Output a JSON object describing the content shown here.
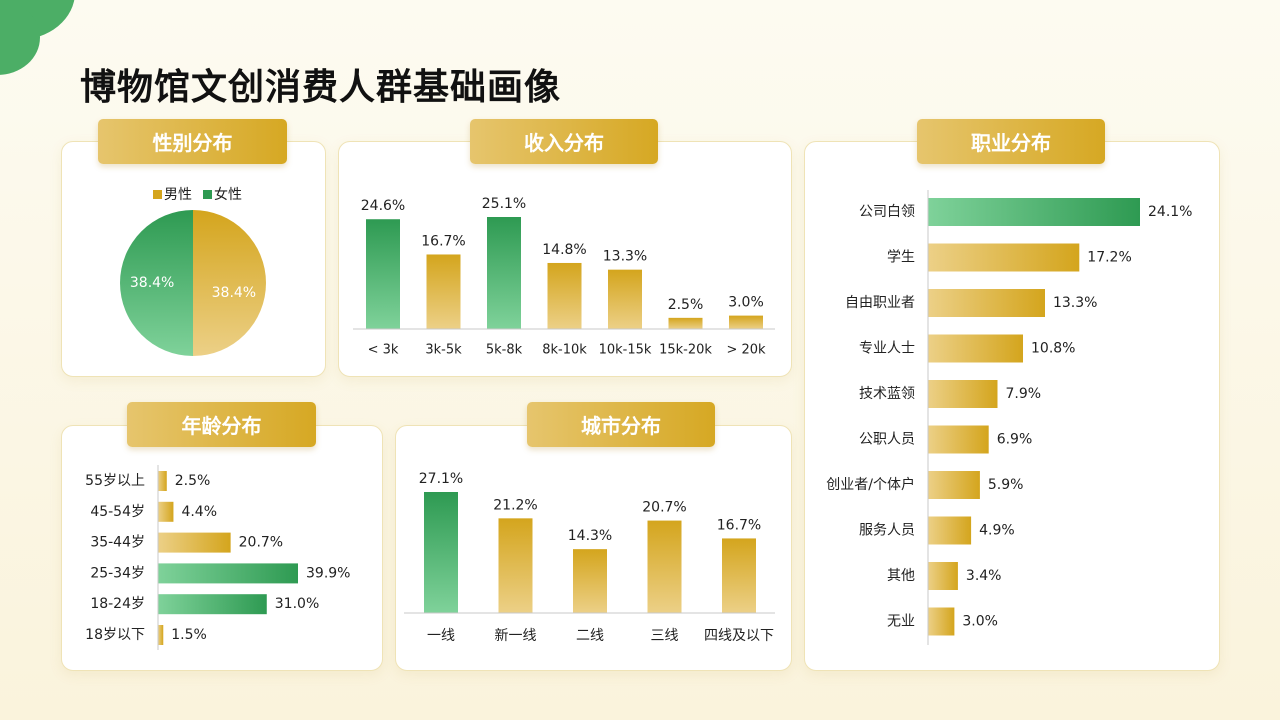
{
  "title": "博物馆文创消费人群基础画像",
  "colors": {
    "green_dark": "#2e9a52",
    "green_light": "#7fd29a",
    "gold_dark": "#d4a51d",
    "gold_light": "#ecd087"
  },
  "chart_data": [
    {
      "id": "gender",
      "type": "pie",
      "title": "性别分布",
      "legend": [
        "男性",
        "女性"
      ],
      "categories": [
        "男性",
        "女性"
      ],
      "values": [
        38.4,
        38.4
      ],
      "labels": [
        "38.4%",
        "38.4%"
      ]
    },
    {
      "id": "income",
      "type": "bar",
      "title": "收入分布",
      "categories": [
        "< 3k",
        "3k-5k",
        "5k-8k",
        "8k-10k",
        "10k-15k",
        "15k-20k",
        "> 20k"
      ],
      "values": [
        24.6,
        16.7,
        25.1,
        14.8,
        13.3,
        2.5,
        3.0
      ],
      "labels": [
        "24.6%",
        "16.7%",
        "25.1%",
        "14.8%",
        "13.3%",
        "2.5%",
        "3.0%"
      ],
      "highlight": [
        0,
        2
      ],
      "ylim": [
        0,
        25.1
      ]
    },
    {
      "id": "occupation",
      "type": "bar",
      "orientation": "horizontal",
      "title": "职业分布",
      "categories": [
        "公司白领",
        "学生",
        "自由职业者",
        "专业人士",
        "技术蓝领",
        "公职人员",
        "创业者/个体户",
        "服务人员",
        "其他",
        "无业"
      ],
      "values": [
        24.1,
        17.2,
        13.3,
        10.8,
        7.9,
        6.9,
        5.9,
        4.9,
        3.4,
        3.0
      ],
      "labels": [
        "24.1%",
        "17.2%",
        "13.3%",
        "10.8%",
        "7.9%",
        "6.9%",
        "5.9%",
        "4.9%",
        "3.4%",
        "3.0%"
      ],
      "highlight": [
        0
      ],
      "xlim": [
        0,
        24.1
      ]
    },
    {
      "id": "age",
      "type": "bar",
      "orientation": "horizontal",
      "title": "年龄分布",
      "categories": [
        "55岁以上",
        "45-54岁",
        "35-44岁",
        "25-34岁",
        "18-24岁",
        "18岁以下"
      ],
      "values": [
        2.5,
        4.4,
        20.7,
        39.9,
        31.0,
        1.5
      ],
      "labels": [
        "2.5%",
        "4.4%",
        "20.7%",
        "39.9%",
        "31.0%",
        "1.5%"
      ],
      "highlight": [
        3,
        4
      ],
      "xlim": [
        0,
        39.9
      ]
    },
    {
      "id": "city",
      "type": "bar",
      "title": "城市分布",
      "categories": [
        "一线",
        "新一线",
        "二线",
        "三线",
        "四线及以下"
      ],
      "values": [
        27.1,
        21.2,
        14.3,
        20.7,
        16.7
      ],
      "labels": [
        "27.1%",
        "21.2%",
        "14.3%",
        "20.7%",
        "16.7%"
      ],
      "highlight": [
        0
      ],
      "ylim": [
        0,
        27.1
      ]
    }
  ]
}
